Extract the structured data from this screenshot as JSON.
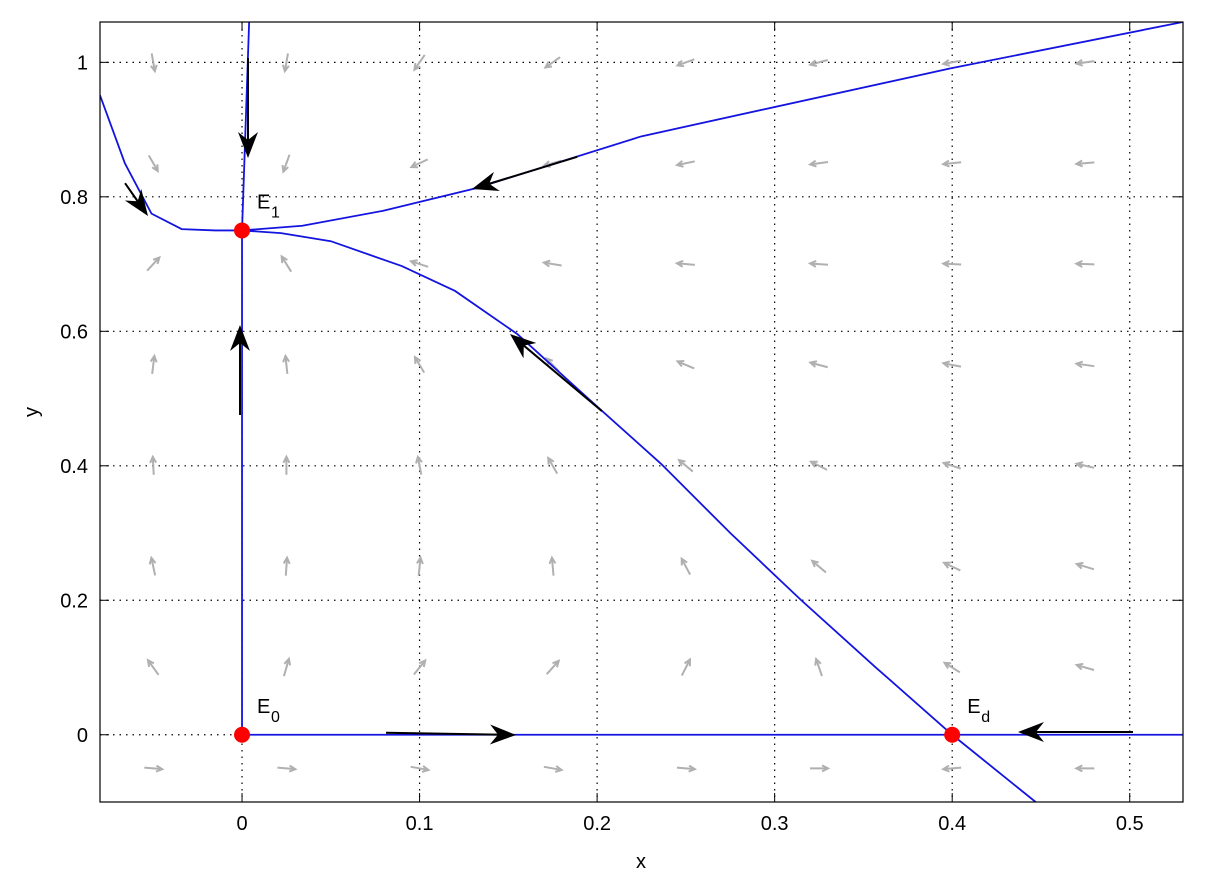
{
  "chart_data": {
    "type": "phase",
    "xlabel": "x",
    "ylabel": "y",
    "xlim": [
      -0.08,
      0.53
    ],
    "ylim": [
      -0.1,
      1.06
    ],
    "xticks": [
      0,
      0.1,
      0.2,
      0.3,
      0.4,
      0.5
    ],
    "yticks": [
      0,
      0.2,
      0.4,
      0.6,
      0.8,
      1
    ],
    "grid": true,
    "field": {
      "color": "#b0b0b0",
      "x": [
        -0.05,
        0.025,
        0.1,
        0.175,
        0.25,
        0.325,
        0.4,
        0.475
      ],
      "y": [
        -0.05,
        0.1,
        0.25,
        0.4,
        0.55,
        0.7,
        0.85,
        1.0
      ],
      "angle": [
        [
          355,
          355,
          350,
          350,
          355,
          0,
          185,
          180
        ],
        [
          126,
          74,
          51,
          48,
          63,
          109,
          148,
          164
        ],
        [
          102,
          86,
          84,
          95,
          118,
          140,
          155,
          163
        ],
        [
          93,
          90,
          101,
          120,
          140,
          153,
          162,
          167
        ],
        [
          83,
          96,
          121,
          134,
          157,
          165,
          169,
          172
        ],
        [
          47,
          122,
          162,
          171,
          175,
          176,
          177,
          178
        ],
        [
          300,
          250,
          205,
          196,
          192,
          188,
          186,
          185
        ],
        [
          280,
          260,
          235,
          215,
          200,
          195,
          190,
          188
        ]
      ]
    },
    "series": [
      {
        "color": "#1414e0",
        "x": [
          0,
          0,
          0.004
        ],
        "y": [
          0,
          0.75,
          1.06
        ]
      },
      {
        "color": "#1414e0",
        "x": [
          0,
          0.53
        ],
        "y": [
          0,
          0
        ]
      },
      {
        "color": "#1414e0",
        "x": [
          0.447,
          0.4,
          0.357,
          0.315,
          0.275,
          0.236,
          0.195,
          0.155,
          0.12,
          0.09,
          0.05,
          0.022,
          0
        ],
        "y": [
          -0.1,
          0,
          0.1,
          0.2,
          0.3,
          0.403,
          0.5,
          0.596,
          0.66,
          0.697,
          0.734,
          0.746,
          0.75
        ]
      },
      {
        "color": "#1414e0",
        "x": [
          0.53,
          0.399,
          0.225,
          0.132,
          0.079,
          0.034,
          0
        ],
        "y": [
          1.06,
          0.991,
          0.89,
          0.813,
          0.779,
          0.757,
          0.75
        ]
      },
      {
        "color": "#1414e0",
        "x": [
          -0.08,
          -0.066,
          -0.051,
          -0.034,
          -0.015,
          0
        ],
        "y": [
          0.951,
          0.85,
          0.775,
          0.752,
          0.75,
          0.75
        ]
      }
    ],
    "point_color": "#ff0000",
    "points": [
      {
        "label": "E",
        "sub": "0",
        "x": 0,
        "y": 0
      },
      {
        "label": "E",
        "sub": "1",
        "x": 0,
        "y": 0.75
      },
      {
        "label": "E",
        "sub": "d",
        "x": 0.4,
        "y": 0
      }
    ]
  }
}
